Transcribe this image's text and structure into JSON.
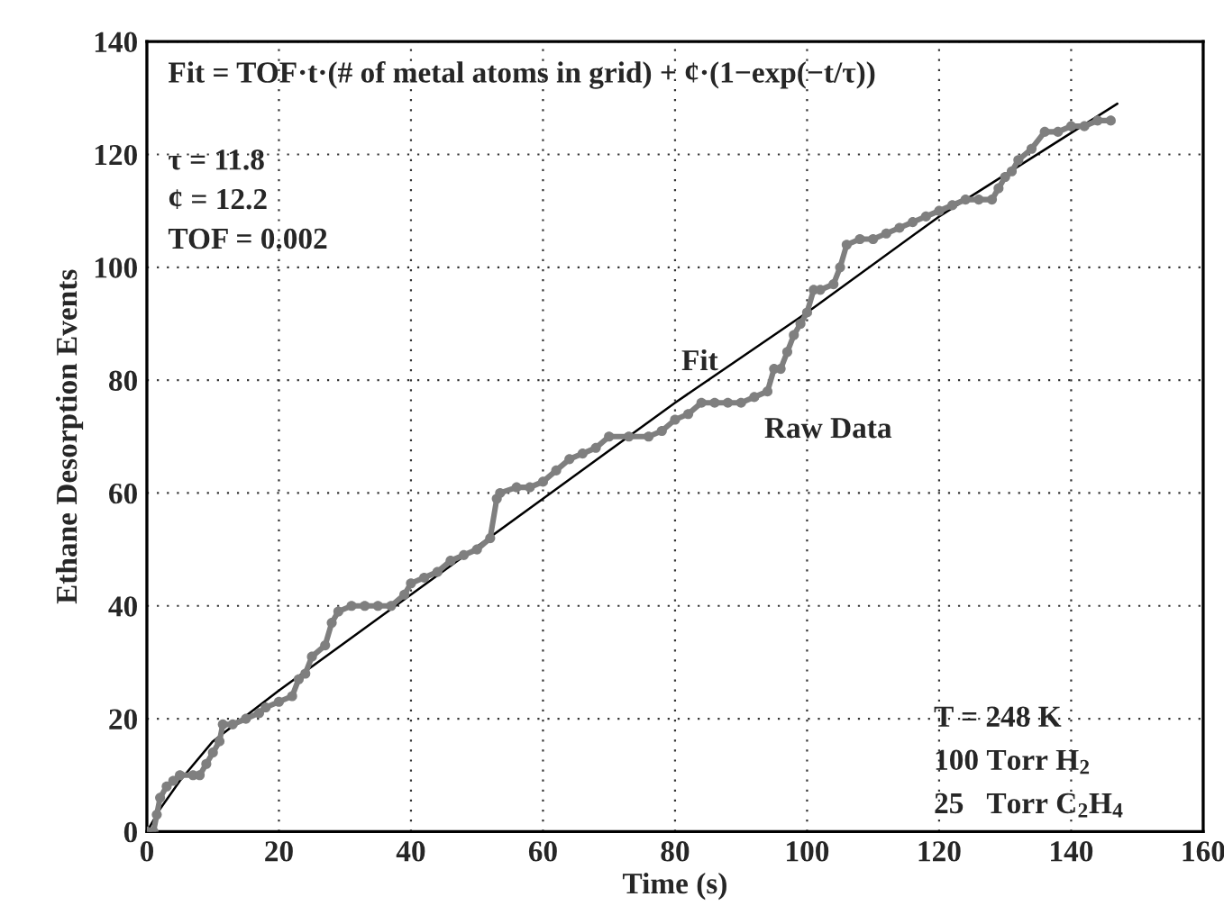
{
  "chart_data": {
    "type": "line",
    "xlabel": "Time (s)",
    "ylabel": "Ethane Desorption Events",
    "xlim": [
      0,
      160
    ],
    "ylim": [
      0,
      140
    ],
    "xticks": [
      0,
      20,
      40,
      60,
      80,
      100,
      120,
      140,
      160
    ],
    "yticks": [
      0,
      20,
      40,
      60,
      80,
      100,
      120,
      140
    ],
    "grid": true,
    "legend": false,
    "series": [
      {
        "color": "#7f7f7f",
        "marker": "circle",
        "x": [
          0,
          1,
          1.5,
          2,
          3,
          4,
          5,
          7,
          8,
          9,
          10,
          11,
          11.5,
          13,
          15,
          17,
          18,
          20,
          22,
          23,
          24,
          25,
          27,
          28,
          29,
          31,
          33,
          35,
          37,
          39,
          40,
          42,
          44,
          46,
          48,
          50,
          52,
          53,
          53.5,
          56,
          58,
          60,
          62,
          64,
          66,
          68,
          70,
          73,
          76,
          78,
          80,
          82,
          84,
          86,
          88,
          90,
          92,
          94,
          95,
          96,
          97,
          98,
          99,
          100,
          101,
          102,
          104,
          105,
          106,
          108,
          110,
          112,
          114,
          116,
          118,
          120,
          122,
          124,
          126,
          128,
          129,
          130,
          131,
          132,
          134,
          136,
          138,
          140,
          142,
          144,
          146
        ],
        "values": [
          0,
          0,
          3,
          6,
          8,
          9,
          10,
          10,
          10,
          12,
          14,
          16,
          19,
          19,
          20,
          21,
          22,
          23,
          24,
          27,
          28,
          31,
          33,
          37,
          39,
          40,
          40,
          40,
          40,
          42,
          44,
          45,
          46,
          48,
          49,
          50,
          52,
          59,
          60,
          61,
          61,
          62,
          64,
          66,
          67,
          68,
          70,
          70,
          70,
          71,
          73,
          74,
          76,
          76,
          76,
          76,
          77,
          78,
          82,
          82,
          85,
          88,
          90,
          92,
          96,
          96,
          97,
          100,
          104,
          105,
          105,
          106,
          107,
          108,
          109,
          110,
          111,
          112,
          112,
          112,
          114,
          116,
          117,
          119,
          121,
          124,
          124,
          125,
          125,
          126,
          126
        ]
      },
      {
        "color": "#000000",
        "marker": "none",
        "x": [
          0,
          2,
          5,
          10,
          20,
          40,
          60,
          80,
          100,
          120,
          147
        ],
        "values": [
          0,
          4,
          9,
          16,
          25,
          42,
          59,
          76,
          92,
          109,
          129
        ]
      }
    ],
    "annotations": [
      "Fit = TOF·t·(# of metal atoms in grid) + ¢·(1−exp(−t/τ))",
      "τ = 11.8",
      "¢ = 12.2",
      "TOF = 0.002",
      {
        "text": "Fit",
        "x": 84,
        "y": 80
      },
      {
        "text": "Raw Data",
        "x": 92,
        "y": 76
      },
      "T = 248 K",
      "100 Torr H$_{2}$",
      "25   Torr C$_{2}$H$_{4}$"
    ]
  }
}
